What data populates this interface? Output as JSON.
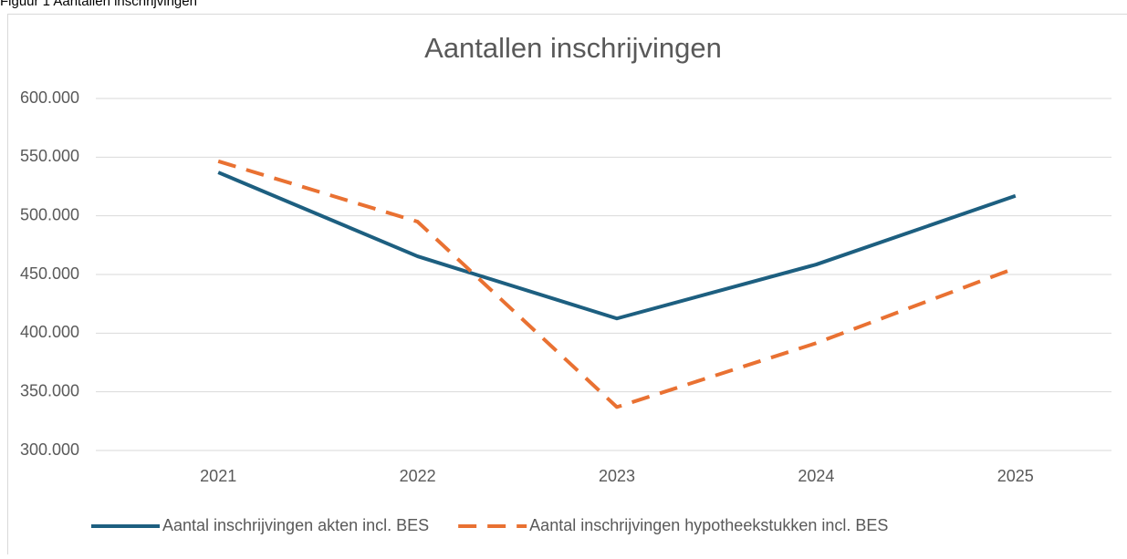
{
  "caption": "Figuur 1 Aantallen inschrijvingen",
  "chart_data": {
    "type": "line",
    "title": "Aantallen inschrijvingen",
    "categories": [
      "2021",
      "2022",
      "2023",
      "2024",
      "2025"
    ],
    "series": [
      {
        "name": "Aantal inschrijvingen akten incl. BES",
        "color": "#1d5f80",
        "dash": false,
        "values": [
          537000,
          465500,
          412500,
          458500,
          517000
        ]
      },
      {
        "name": "Aantal inschrijvingen hypotheekstukken incl. BES",
        "color": "#e97132",
        "dash": true,
        "values": [
          546500,
          495000,
          337000,
          391500,
          455500
        ]
      }
    ],
    "ylim": [
      300000,
      600000
    ],
    "yticks": [
      {
        "value": 300000,
        "label": "300.000"
      },
      {
        "value": 350000,
        "label": "350.000"
      },
      {
        "value": 400000,
        "label": "400.000"
      },
      {
        "value": 450000,
        "label": "450.000"
      },
      {
        "value": 500000,
        "label": "500.000"
      },
      {
        "value": 550000,
        "label": "550.000"
      },
      {
        "value": 600000,
        "label": "600.000"
      }
    ],
    "grid": true,
    "legend": "bottom"
  }
}
